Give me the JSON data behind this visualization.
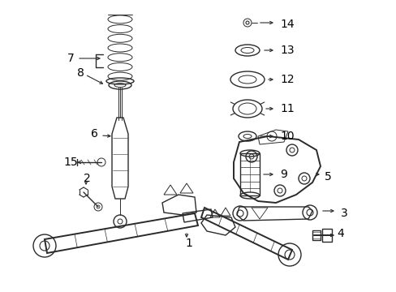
{
  "background_color": "#ffffff",
  "line_color": "#2a2a2a",
  "label_color": "#000000",
  "fig_width": 4.89,
  "fig_height": 3.6,
  "dpi": 100
}
